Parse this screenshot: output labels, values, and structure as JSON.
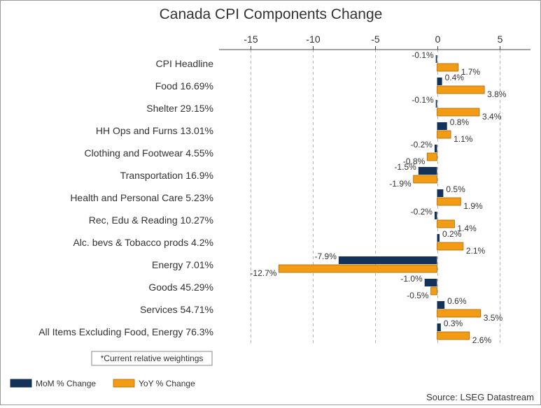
{
  "chart_data": {
    "type": "bar",
    "orientation": "horizontal",
    "title": "Canada CPI Components Change",
    "categories": [
      "CPI Headline",
      "Food 16.69%",
      "Shelter 29.15%",
      "HH Ops and Furns 13.01%",
      "Clothing and Footwear 4.55%",
      "Transportation 16.9%",
      "Health and Personal Care 5.23%",
      "Rec, Edu & Reading 10.27%",
      "Alc. bevs & Tobacco prods 4.2%",
      "Energy 7.01%",
      "Goods 45.29%",
      "Services 54.71%",
      "All Items Excluding Food, Energy 76.3%"
    ],
    "series": [
      {
        "name": "MoM % Change",
        "color": "#14315a",
        "values": [
          -0.1,
          0.4,
          -0.1,
          0.8,
          -0.2,
          -1.5,
          0.5,
          -0.2,
          0.2,
          -7.9,
          -1.0,
          0.6,
          0.3
        ],
        "labels": [
          "-0.1%",
          "0.4%",
          "-0.1%",
          "0.8%",
          "-0.2%",
          "-1.5%",
          "0.5%",
          "-0.2%",
          "0.2%",
          "-7.9%",
          "-1.0%",
          "0.6%",
          "0.3%"
        ]
      },
      {
        "name": "YoY % Change",
        "color": "#f29b14",
        "values": [
          1.7,
          3.8,
          3.4,
          1.1,
          -0.8,
          -1.9,
          1.9,
          1.4,
          2.1,
          -12.7,
          -0.5,
          3.5,
          2.6
        ],
        "labels": [
          "1.7%",
          "3.8%",
          "3.4%",
          "1.1%",
          "-0.8%",
          "-1.9%",
          "1.9%",
          "1.4%",
          "2.1%",
          "-12.7%",
          "-0.5%",
          "3.5%",
          "2.6%"
        ]
      }
    ],
    "xlim": [
      -17.5,
      7.5
    ],
    "xticks": [
      -15,
      -10,
      -5,
      0,
      5
    ],
    "xtick_labels": [
      "-15",
      "-10",
      "-5",
      "0",
      "5"
    ],
    "xaxis_position": "top",
    "grid": "vertical dashed",
    "legend_position": "bottom-left"
  },
  "note": "*Current relative weightings",
  "source": "Source: LSEG Datastream"
}
